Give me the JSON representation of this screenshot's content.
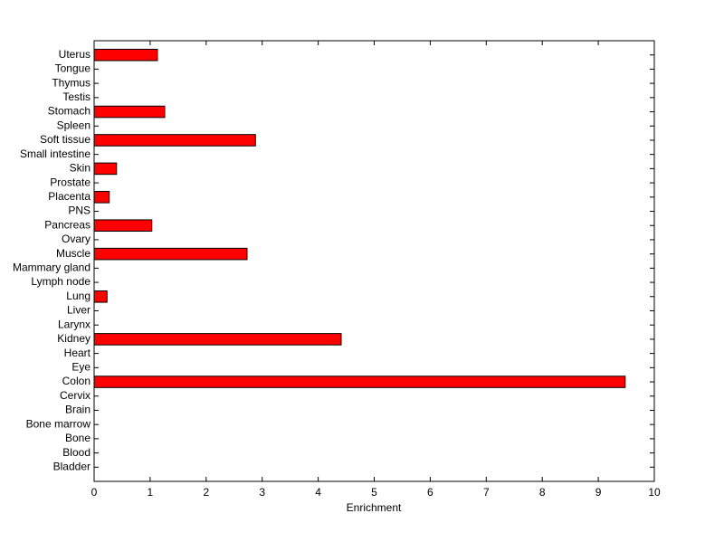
{
  "chart_data": {
    "type": "barh",
    "xlabel": "Enrichment",
    "categories": [
      "Bladder",
      "Blood",
      "Bone",
      "Bone marrow",
      "Brain",
      "Cervix",
      "Colon",
      "Eye",
      "Heart",
      "Kidney",
      "Larynx",
      "Liver",
      "Lung",
      "Lymph node",
      "Mammary gland",
      "Muscle",
      "Ovary",
      "Pancreas",
      "PNS",
      "Placenta",
      "Prostate",
      "Skin",
      "Small intestine",
      "Soft tissue",
      "Spleen",
      "Stomach",
      "Testis",
      "Thymus",
      "Tongue",
      "Uterus"
    ],
    "values": [
      0,
      0,
      0,
      0,
      0,
      0,
      9.48,
      0,
      0,
      4.41,
      0,
      0,
      0.23,
      0,
      0,
      2.73,
      0,
      1.03,
      0,
      0.27,
      0,
      0.4,
      0,
      2.88,
      0,
      1.26,
      0,
      0,
      0,
      1.13
    ],
    "color": "#ff0000",
    "xlim": [
      0,
      10
    ],
    "xticks": [
      0,
      1,
      2,
      3,
      4,
      5,
      6,
      7,
      8,
      9,
      10
    ]
  }
}
